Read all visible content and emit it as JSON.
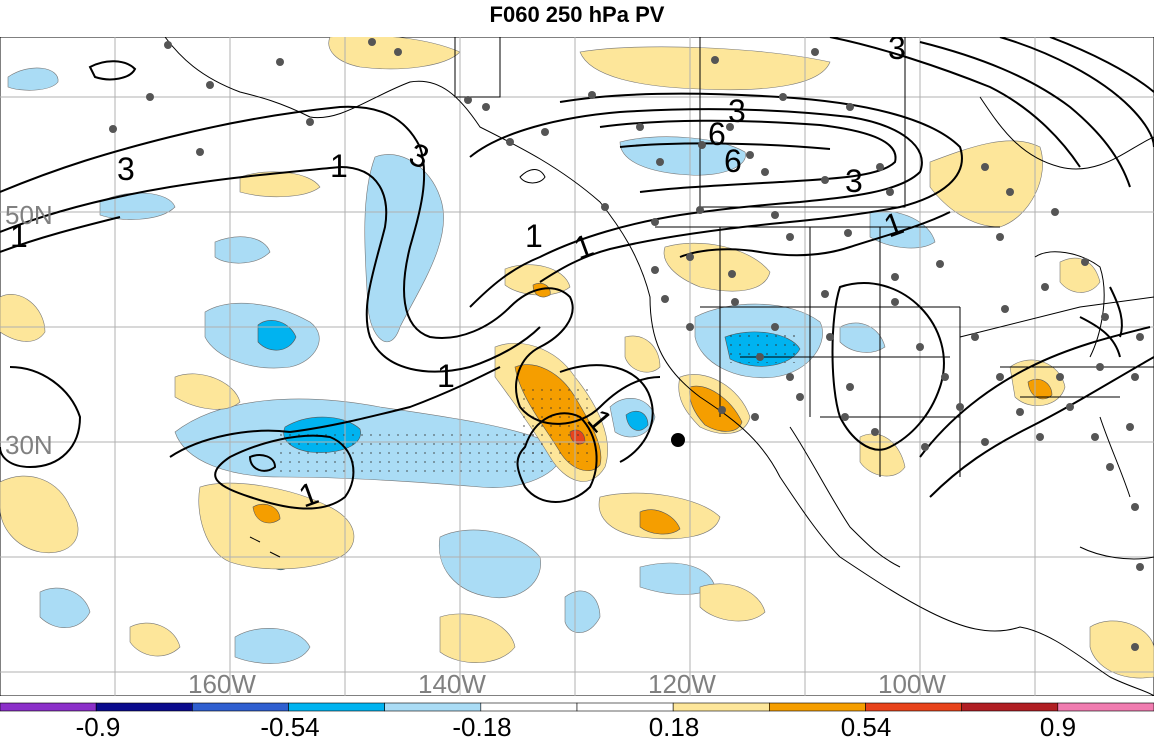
{
  "title": "F060 250 hPa PV",
  "map": {
    "lat_labels": [
      "50N",
      "30N"
    ],
    "lon_labels": [
      "160W",
      "140W",
      "120W",
      "100W"
    ],
    "contour_labels": [
      "3",
      "3",
      "6",
      "6",
      "3",
      "3",
      "1",
      "1",
      "3",
      "1",
      "1",
      "1",
      "1",
      "1",
      "1"
    ],
    "grid_color": "#b0b0b0"
  },
  "colorbar": {
    "tick_labels": [
      "-0.9",
      "-0.54",
      "-0.18",
      "0.18",
      "0.54",
      "0.9"
    ],
    "colors": [
      "#8b2fc9",
      "#0a0a8c",
      "#2f5fd0",
      "#00b3f0",
      "#aadcf5",
      "#ffffff",
      "#ffffff",
      "#fde69a",
      "#f59e00",
      "#e8431b",
      "#b01e23",
      "#f07cb0"
    ]
  },
  "colors": {
    "light_blue": "#aadcf5",
    "mid_blue": "#00b3f0",
    "light_yellow": "#fde69a",
    "orange": "#f59e00",
    "red": "#e8431b",
    "station_dot": "#555555"
  }
}
